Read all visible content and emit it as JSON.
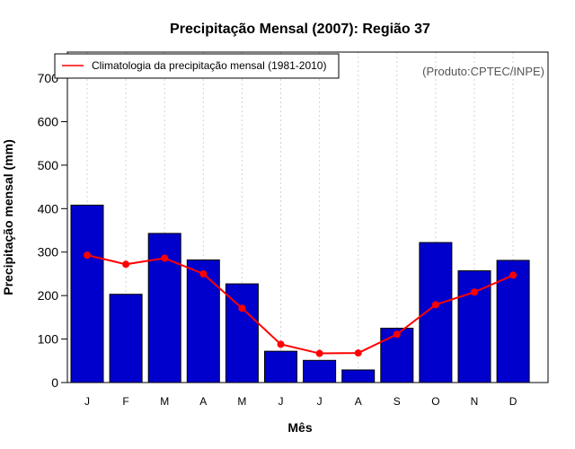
{
  "chart_data": {
    "type": "bar",
    "title": "Precipitação Mensal (2007): Região 37",
    "xlabel": "Mês",
    "ylabel": "Precipitação mensal (mm)",
    "ylim": [
      0,
      760
    ],
    "yticks": [
      0,
      100,
      200,
      300,
      400,
      500,
      600,
      700
    ],
    "categories": [
      "J",
      "F",
      "M",
      "A",
      "M",
      "J",
      "J",
      "A",
      "S",
      "O",
      "N",
      "D"
    ],
    "series": [
      {
        "name": "Precipitação mensal 2007",
        "kind": "bar",
        "color": "#0000cd",
        "values": [
          408,
          203,
          343,
          282,
          227,
          72,
          51,
          29,
          125,
          322,
          257,
          281
        ]
      },
      {
        "name": "Climatologia da precipitação mensal (1981-2010)",
        "kind": "line",
        "color": "#ff0000",
        "values": [
          293,
          272,
          286,
          250,
          171,
          88,
          67,
          68,
          111,
          179,
          208,
          247
        ]
      }
    ],
    "legend": {
      "position": "top-left",
      "entries": [
        "Climatologia da precipitação mensal (1981-2010)"
      ]
    },
    "annotation": "(Produto:CPTEC/INPE)",
    "grid": "vertical-dotted"
  }
}
